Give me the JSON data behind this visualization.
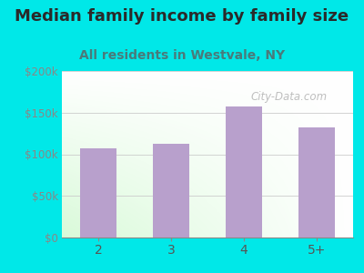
{
  "title": "Median family income by family size",
  "subtitle": "All residents in Westvale, NY",
  "categories": [
    "2",
    "3",
    "4",
    "5+"
  ],
  "values": [
    107000,
    113000,
    157000,
    132000
  ],
  "bar_color": "#b8a0cc",
  "background_color": "#00e8e8",
  "title_color": "#2a2a2a",
  "subtitle_color": "#4a7a7a",
  "ytick_color": "#888888",
  "xtick_color": "#555555",
  "ylim": [
    0,
    200000
  ],
  "yticks": [
    0,
    50000,
    100000,
    150000,
    200000
  ],
  "ytick_labels": [
    "$0",
    "$50k",
    "$100k",
    "$150k",
    "$200k"
  ],
  "title_fontsize": 13,
  "subtitle_fontsize": 10,
  "watermark": "City-Data.com"
}
